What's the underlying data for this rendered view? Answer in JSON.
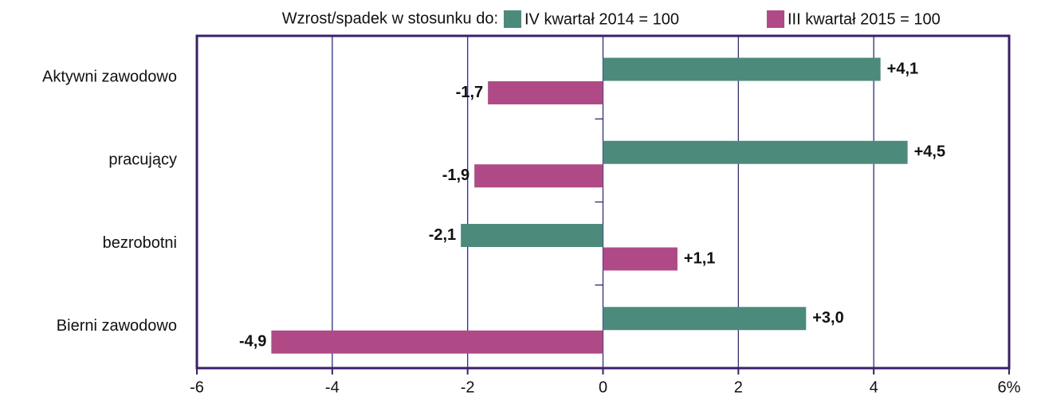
{
  "chart_data": {
    "type": "hbar",
    "legend_title": "Wzrost/spadek w stosunku do:",
    "categories": [
      "Aktywni zawodowo",
      "pracujący",
      "bezrobotni",
      "Bierni zawodowo"
    ],
    "series": [
      {
        "name": "IV kwartał 2014 = 100",
        "color": "#4c8a7b",
        "values": [
          4.1,
          4.5,
          -2.1,
          3.0
        ],
        "value_labels": [
          "+4,1",
          "+4,5",
          "-2,1",
          "+3,0"
        ]
      },
      {
        "name": "III kwartał 2015 = 100",
        "color": "#b04a86",
        "values": [
          -1.7,
          -1.9,
          1.1,
          -4.9
        ],
        "value_labels": [
          "-1,7",
          "-1,9",
          "+1,1",
          "-4,9"
        ]
      }
    ],
    "xlim": [
      -6,
      6
    ],
    "xticks": [
      -6,
      -4,
      -2,
      0,
      2,
      4,
      {
        "value": 6,
        "label": "6%"
      }
    ],
    "grid": true,
    "legend": "top"
  }
}
